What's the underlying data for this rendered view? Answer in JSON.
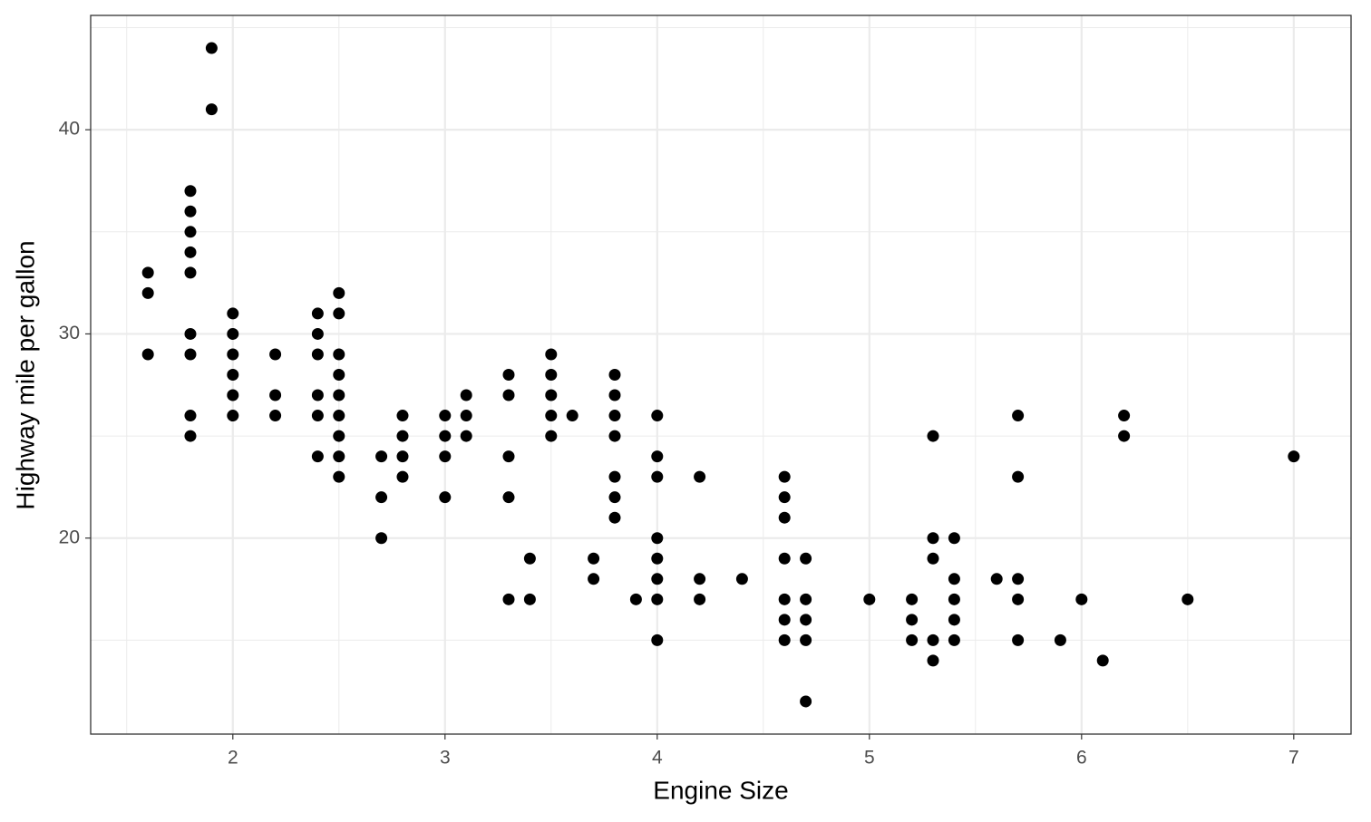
{
  "chart_data": {
    "type": "scatter",
    "x_label": "Engine Size",
    "y_label": "Highway mile per gallon",
    "x": [
      1.6,
      1.6,
      1.6,
      1.8,
      1.8,
      1.8,
      1.8,
      1.8,
      1.8,
      1.8,
      1.8,
      1.8,
      1.9,
      1.9,
      2.0,
      2.0,
      2.0,
      2.0,
      2.0,
      2.0,
      2.2,
      2.2,
      2.2,
      2.4,
      2.4,
      2.4,
      2.4,
      2.4,
      2.4,
      2.5,
      2.5,
      2.5,
      2.5,
      2.5,
      2.5,
      2.5,
      2.5,
      2.5,
      2.7,
      2.7,
      2.7,
      2.8,
      2.8,
      2.8,
      2.8,
      3.0,
      3.0,
      3.0,
      3.0,
      3.1,
      3.1,
      3.1,
      3.3,
      3.3,
      3.3,
      3.3,
      3.3,
      3.4,
      3.4,
      3.5,
      3.5,
      3.5,
      3.5,
      3.5,
      3.6,
      3.7,
      3.7,
      3.8,
      3.8,
      3.8,
      3.8,
      3.8,
      3.8,
      3.8,
      3.9,
      4.0,
      4.0,
      4.0,
      4.0,
      4.0,
      4.0,
      4.0,
      4.0,
      4.2,
      4.2,
      4.2,
      4.4,
      4.6,
      4.6,
      4.6,
      4.6,
      4.6,
      4.6,
      4.6,
      4.7,
      4.7,
      4.7,
      4.7,
      4.7,
      5.0,
      5.2,
      5.2,
      5.2,
      5.3,
      5.3,
      5.3,
      5.3,
      5.3,
      5.4,
      5.4,
      5.4,
      5.4,
      5.4,
      5.6,
      5.7,
      5.7,
      5.7,
      5.7,
      5.7,
      5.9,
      6.0,
      6.1,
      6.2,
      6.2,
      6.5,
      7.0
    ],
    "y": [
      33,
      32,
      29,
      37,
      36,
      35,
      34,
      33,
      30,
      29,
      26,
      25,
      44,
      41,
      31,
      30,
      29,
      28,
      27,
      26,
      29,
      27,
      26,
      31,
      30,
      29,
      27,
      26,
      24,
      32,
      31,
      29,
      28,
      27,
      26,
      25,
      24,
      23,
      24,
      22,
      20,
      26,
      25,
      24,
      23,
      26,
      25,
      24,
      22,
      27,
      26,
      25,
      28,
      27,
      24,
      22,
      17,
      19,
      17,
      29,
      28,
      27,
      26,
      25,
      26,
      19,
      18,
      28,
      27,
      26,
      25,
      23,
      22,
      21,
      17,
      26,
      24,
      23,
      20,
      19,
      18,
      17,
      15,
      23,
      18,
      17,
      18,
      23,
      22,
      21,
      19,
      17,
      16,
      15,
      19,
      17,
      16,
      15,
      12,
      17,
      17,
      16,
      15,
      25,
      20,
      19,
      15,
      14,
      20,
      18,
      17,
      16,
      15,
      18,
      26,
      23,
      18,
      17,
      15,
      15,
      17,
      14,
      26,
      25,
      17,
      24
    ],
    "color": "#000000",
    "xlim": [
      1.33,
      7.27
    ],
    "ylim": [
      10.4,
      45.6
    ],
    "xticks": [
      2,
      3,
      4,
      5,
      6,
      7
    ],
    "yticks": [
      20,
      30,
      40
    ],
    "x_minor_grid": [
      1.5,
      2.5,
      3.5,
      4.5,
      5.5,
      6.5
    ],
    "y_minor_grid": [
      15,
      25,
      35,
      45
    ],
    "grid": true
  }
}
